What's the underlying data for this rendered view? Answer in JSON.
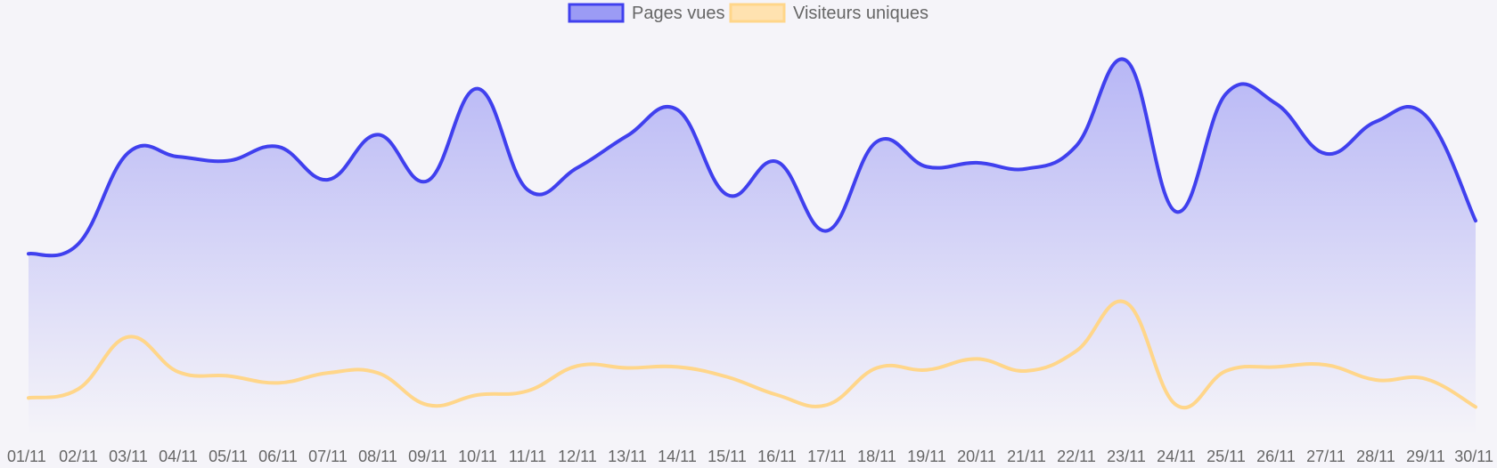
{
  "chart_data": {
    "type": "area",
    "title": "",
    "xlabel": "",
    "ylabel": "",
    "ylim": [
      0,
      400
    ],
    "grid": false,
    "legend_position": "top-center",
    "categories": [
      "01/11",
      "02/11",
      "03/11",
      "04/11",
      "05/11",
      "06/11",
      "07/11",
      "08/11",
      "09/11",
      "10/11",
      "11/11",
      "12/11",
      "13/11",
      "14/11",
      "15/11",
      "16/11",
      "17/11",
      "18/11",
      "19/11",
      "20/11",
      "21/11",
      "22/11",
      "23/11",
      "24/11",
      "25/11",
      "26/11",
      "27/11",
      "28/11",
      "29/11",
      "30/11"
    ],
    "series": [
      {
        "name": "Pages vues",
        "color": "#4040ee",
        "fill": true,
        "values": [
          182,
          192,
          283,
          279,
          275,
          289,
          256,
          301,
          255,
          347,
          246,
          268,
          300,
          326,
          241,
          274,
          205,
          294,
          269,
          273,
          267,
          290,
          375,
          224,
          342,
          332,
          282,
          314,
          320,
          215
        ]
      },
      {
        "name": "Visiteurs uniques",
        "color": "#ffd68a",
        "fill": false,
        "values": [
          38,
          47,
          99,
          64,
          60,
          53,
          63,
          63,
          31,
          41,
          45,
          70,
          68,
          69,
          59,
          41,
          31,
          68,
          66,
          77,
          65,
          85,
          133,
          31,
          65,
          69,
          71,
          56,
          57,
          29
        ]
      }
    ]
  }
}
